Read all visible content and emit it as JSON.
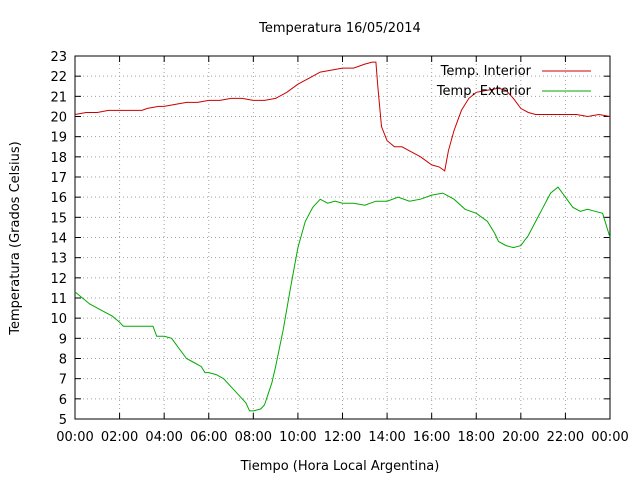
{
  "chart_data": {
    "type": "line",
    "title": "Temperatura 16/05/2014",
    "xlabel": "Tiempo (Hora Local Argentina)",
    "ylabel": "Temperatura (Grados Celsius)",
    "xlim": [
      "00:00",
      "24:00"
    ],
    "ylim": [
      5,
      23
    ],
    "grid": true,
    "legend_position": "top-right",
    "x_tick_labels": [
      "00:00",
      "02:00",
      "04:00",
      "06:00",
      "08:00",
      "10:00",
      "12:00",
      "14:00",
      "16:00",
      "18:00",
      "20:00",
      "22:00",
      "00:00"
    ],
    "y_ticks": [
      5,
      6,
      7,
      8,
      9,
      10,
      11,
      12,
      13,
      14,
      15,
      16,
      17,
      18,
      19,
      20,
      21,
      22,
      23
    ],
    "series": [
      {
        "name": "Temp. Interior",
        "color": "#cc0000",
        "points": [
          [
            "00:00",
            20.1
          ],
          [
            "00:30",
            20.2
          ],
          [
            "01:00",
            20.2
          ],
          [
            "01:30",
            20.3
          ],
          [
            "02:00",
            20.3
          ],
          [
            "02:30",
            20.3
          ],
          [
            "03:00",
            20.3
          ],
          [
            "03:15",
            20.4
          ],
          [
            "03:45",
            20.5
          ],
          [
            "04:00",
            20.5
          ],
          [
            "04:30",
            20.6
          ],
          [
            "05:00",
            20.7
          ],
          [
            "05:30",
            20.7
          ],
          [
            "06:00",
            20.8
          ],
          [
            "06:30",
            20.8
          ],
          [
            "07:00",
            20.9
          ],
          [
            "07:30",
            20.9
          ],
          [
            "08:00",
            20.8
          ],
          [
            "08:30",
            20.8
          ],
          [
            "09:00",
            20.9
          ],
          [
            "09:30",
            21.2
          ],
          [
            "10:00",
            21.6
          ],
          [
            "10:30",
            21.9
          ],
          [
            "11:00",
            22.2
          ],
          [
            "11:30",
            22.3
          ],
          [
            "12:00",
            22.4
          ],
          [
            "12:30",
            22.4
          ],
          [
            "13:00",
            22.6
          ],
          [
            "13:20",
            22.7
          ],
          [
            "13:30",
            22.7
          ],
          [
            "13:35",
            21.5
          ],
          [
            "13:45",
            19.5
          ],
          [
            "14:00",
            18.8
          ],
          [
            "14:20",
            18.5
          ],
          [
            "14:40",
            18.5
          ],
          [
            "15:00",
            18.3
          ],
          [
            "15:30",
            18.0
          ],
          [
            "16:00",
            17.6
          ],
          [
            "16:20",
            17.5
          ],
          [
            "16:35",
            17.3
          ],
          [
            "16:45",
            18.3
          ],
          [
            "17:00",
            19.3
          ],
          [
            "17:20",
            20.3
          ],
          [
            "17:40",
            20.9
          ],
          [
            "18:00",
            21.2
          ],
          [
            "18:30",
            21.3
          ],
          [
            "19:00",
            21.4
          ],
          [
            "19:20",
            21.3
          ],
          [
            "19:40",
            20.9
          ],
          [
            "20:00",
            20.4
          ],
          [
            "20:20",
            20.2
          ],
          [
            "20:40",
            20.1
          ],
          [
            "21:00",
            20.1
          ],
          [
            "21:30",
            20.1
          ],
          [
            "22:00",
            20.1
          ],
          [
            "22:30",
            20.1
          ],
          [
            "23:00",
            20.0
          ],
          [
            "23:30",
            20.1
          ],
          [
            "24:00",
            20.0
          ]
        ]
      },
      {
        "name": "Temp. Exterior",
        "color": "#00aa00",
        "points": [
          [
            "00:00",
            11.3
          ],
          [
            "00:20",
            11.0
          ],
          [
            "00:40",
            10.7
          ],
          [
            "01:00",
            10.5
          ],
          [
            "01:20",
            10.3
          ],
          [
            "01:40",
            10.1
          ],
          [
            "02:00",
            9.8
          ],
          [
            "02:10",
            9.6
          ],
          [
            "02:30",
            9.6
          ],
          [
            "03:00",
            9.6
          ],
          [
            "03:30",
            9.6
          ],
          [
            "03:40",
            9.1
          ],
          [
            "04:00",
            9.1
          ],
          [
            "04:20",
            9.0
          ],
          [
            "04:40",
            8.5
          ],
          [
            "05:00",
            8.0
          ],
          [
            "05:20",
            7.8
          ],
          [
            "05:40",
            7.6
          ],
          [
            "05:50",
            7.3
          ],
          [
            "06:00",
            7.3
          ],
          [
            "06:20",
            7.2
          ],
          [
            "06:40",
            7.0
          ],
          [
            "07:00",
            6.6
          ],
          [
            "07:20",
            6.2
          ],
          [
            "07:40",
            5.8
          ],
          [
            "07:50",
            5.4
          ],
          [
            "08:00",
            5.4
          ],
          [
            "08:20",
            5.5
          ],
          [
            "08:30",
            5.7
          ],
          [
            "08:50",
            6.8
          ],
          [
            "09:00",
            7.6
          ],
          [
            "09:20",
            9.4
          ],
          [
            "09:40",
            11.5
          ],
          [
            "10:00",
            13.5
          ],
          [
            "10:20",
            14.8
          ],
          [
            "10:40",
            15.5
          ],
          [
            "11:00",
            15.9
          ],
          [
            "11:20",
            15.7
          ],
          [
            "11:40",
            15.8
          ],
          [
            "12:00",
            15.7
          ],
          [
            "12:30",
            15.7
          ],
          [
            "13:00",
            15.6
          ],
          [
            "13:30",
            15.8
          ],
          [
            "14:00",
            15.8
          ],
          [
            "14:30",
            16.0
          ],
          [
            "15:00",
            15.8
          ],
          [
            "15:30",
            15.9
          ],
          [
            "16:00",
            16.1
          ],
          [
            "16:30",
            16.2
          ],
          [
            "17:00",
            15.9
          ],
          [
            "17:30",
            15.4
          ],
          [
            "18:00",
            15.2
          ],
          [
            "18:30",
            14.8
          ],
          [
            "18:50",
            14.2
          ],
          [
            "19:00",
            13.8
          ],
          [
            "19:20",
            13.6
          ],
          [
            "19:40",
            13.5
          ],
          [
            "20:00",
            13.6
          ],
          [
            "20:20",
            14.1
          ],
          [
            "20:40",
            14.8
          ],
          [
            "21:00",
            15.5
          ],
          [
            "21:20",
            16.2
          ],
          [
            "21:40",
            16.5
          ],
          [
            "22:00",
            16.0
          ],
          [
            "22:20",
            15.5
          ],
          [
            "22:40",
            15.3
          ],
          [
            "23:00",
            15.4
          ],
          [
            "23:20",
            15.3
          ],
          [
            "23:40",
            15.2
          ],
          [
            "24:00",
            14.0
          ]
        ]
      }
    ]
  }
}
